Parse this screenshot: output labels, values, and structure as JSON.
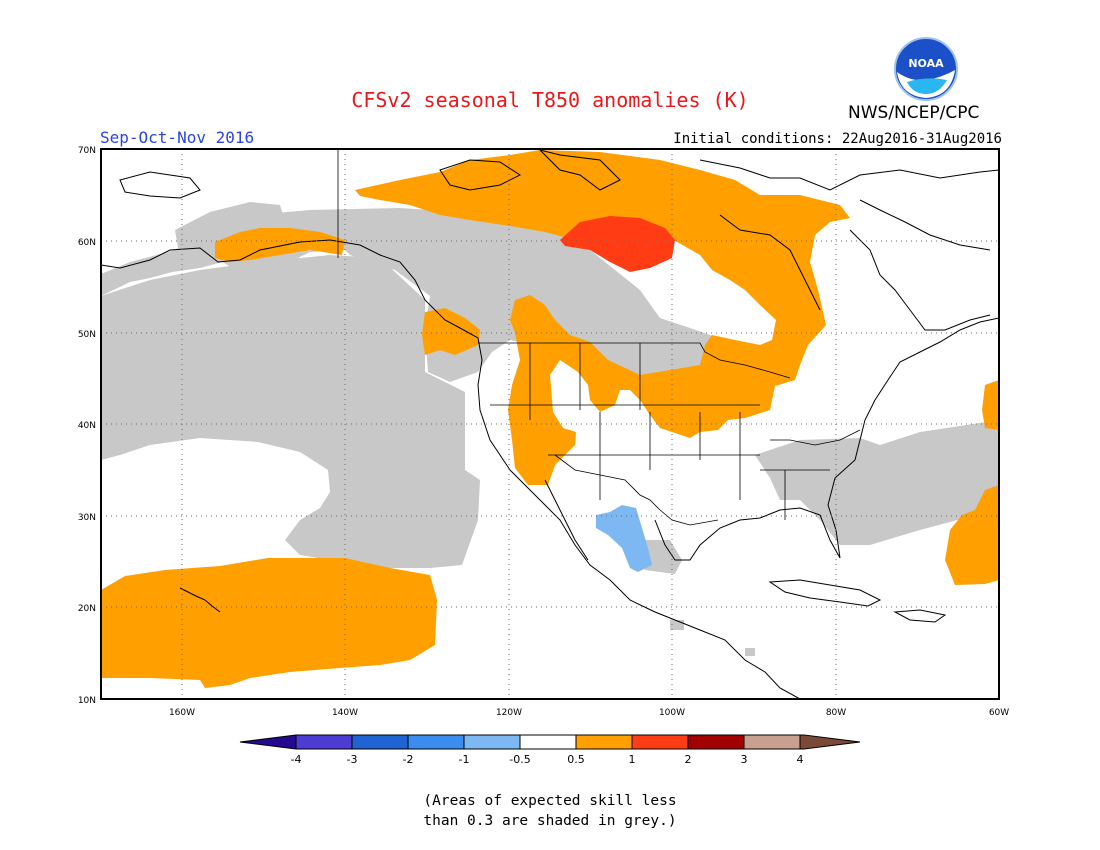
{
  "map": {
    "title": "CFSv2 seasonal T850 anomalies (K)",
    "agency": "NWS/NCEP/CPC",
    "season": "Sep-Oct-Nov 2016",
    "initial_conditions": "Initial conditions: 22Aug2016-31Aug2016",
    "logo_text": "NOAA",
    "lat_labels": [
      "70N",
      "60N",
      "50N",
      "40N",
      "30N",
      "20N",
      "10N"
    ],
    "lon_labels": [
      "160W",
      "140W",
      "120W",
      "100W",
      "80W",
      "60W"
    ],
    "extent": {
      "lon": [
        -170,
        -60
      ],
      "lat": [
        10,
        70
      ]
    },
    "skill_note": [
      "(Areas of expected skill less",
      "than 0.3 are shaded in grey.)"
    ]
  },
  "legend": {
    "ticks": [
      "-4",
      "-3",
      "-2",
      "-1",
      "-0.5",
      "0.5",
      "1",
      "2",
      "3",
      "4"
    ],
    "colors": [
      "#240a8f",
      "#4d3bd2",
      "#1f64d2",
      "#3a8cee",
      "#7db8f2",
      "#ffffff",
      "#ff9f00",
      "#ff3c14",
      "#a00000",
      "#c8a090",
      "#7a4a36"
    ]
  },
  "colors": {
    "title": "#e8181c",
    "season": "#2a45e0",
    "grey_skill": "#c8c8c8",
    "warm": "#ff9f00",
    "strong_warm": "#ff3c14",
    "cool": "#7db8f2"
  }
}
